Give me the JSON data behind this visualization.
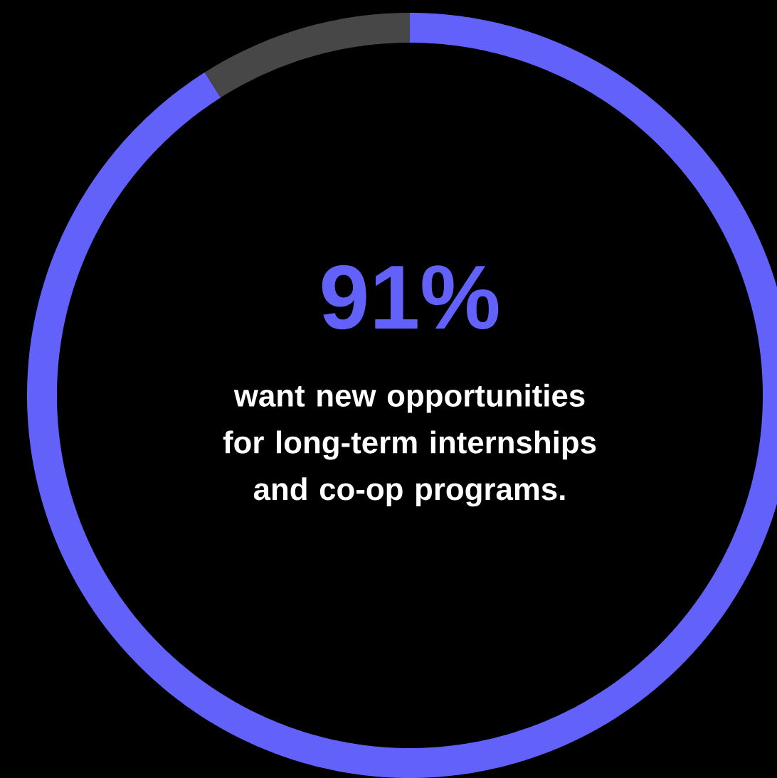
{
  "chart_data": {
    "type": "donut",
    "categories": [
      null,
      null
    ],
    "values": [
      91,
      9
    ],
    "colors": [
      "#6262fb",
      "#474747"
    ],
    "value_labels": [
      "91%",
      null
    ],
    "annotations": [
      "want new opportunities for long-term internships and co-op programs."
    ]
  }
}
